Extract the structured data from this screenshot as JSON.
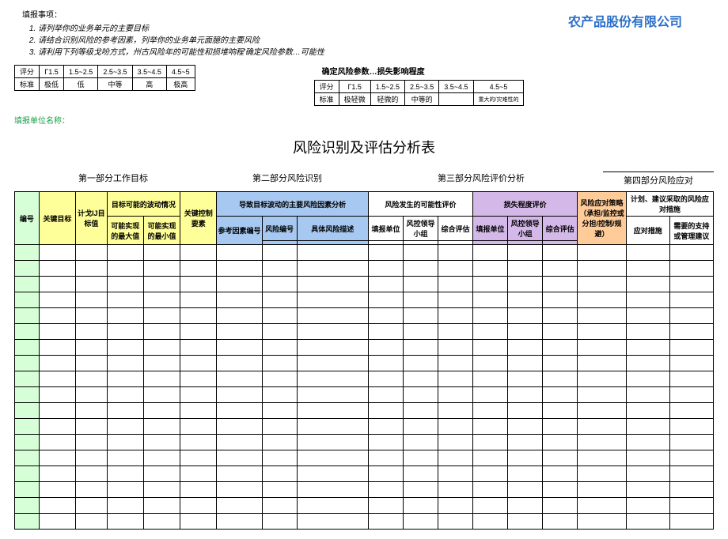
{
  "company": "农产品股份有限公司",
  "instructions": {
    "heading": "填报事项：",
    "items": [
      "请列举你的业务单元的主要目标",
      "请结合识别风险的参考因素，列举你的业务单元面臆的主要风险",
      "请利用下列等级戈吩方式，州古风险年的可能性和损堆响程'确定风险参数…可能性"
    ]
  },
  "param_left": {
    "row1": [
      "评分",
      "Γ1.5",
      "1.5~2.5",
      "2.5~3.5",
      "3.5~4.5",
      "4.5~5"
    ],
    "row2": [
      "标准",
      "极低",
      "低",
      "中等",
      "高",
      "极高"
    ]
  },
  "param_right": {
    "title": "确定风险参数…损失影响程度",
    "row1": [
      "评分",
      "Γ1.5",
      "1.5~2.5",
      "2.5~3.5",
      "3.5~4.5",
      "4.5~5"
    ],
    "row2": [
      "标准",
      "极轻微",
      "轻微的",
      "中等的",
      "",
      "重大的/灾难性的"
    ]
  },
  "unit_label": "填报单位名称：",
  "main_title": "风险识别及评估分析表",
  "sections": {
    "s1": "第一部分工作目标",
    "s2": "第二部分风险识别",
    "s3": "第三部分风险评价分析",
    "s4": "第四部分风险应对"
  },
  "headers": {
    "c1": "编号",
    "c2": "关键目标",
    "c3": "计戈IJ目标值",
    "c4": "目标可能的波动情况",
    "c4a": "可能实现的最大值",
    "c4b": "可能实现的最小值",
    "c5": "关键控制要素",
    "c6": "导致目标波动的主要风险因素分析",
    "c6a": "参考因素编号",
    "c6b": "风险编号",
    "c6c": "具体风险描述",
    "c7": "风险发生的可能性评价",
    "c7a": "填报单位",
    "c7b": "风控领导小组",
    "c7c": "综合评估",
    "c8": "损失程度评价",
    "c8a": "填报单位",
    "c8b": "风控领导小组",
    "c8c": "综合评估",
    "c9": "风险应对策略（承担/监控或分担/控制/规避）",
    "c10": "计划、建议采取的风险应对措施",
    "c10a": "应对措施",
    "c10b": "需要的支持或管理建议"
  },
  "body_rows": 18,
  "colors": {
    "green": "#d7ffd7",
    "yellow": "#ffff99",
    "blue": "#a7c8f0",
    "purple": "#d4b8e8",
    "orange": "#ffcc99"
  }
}
